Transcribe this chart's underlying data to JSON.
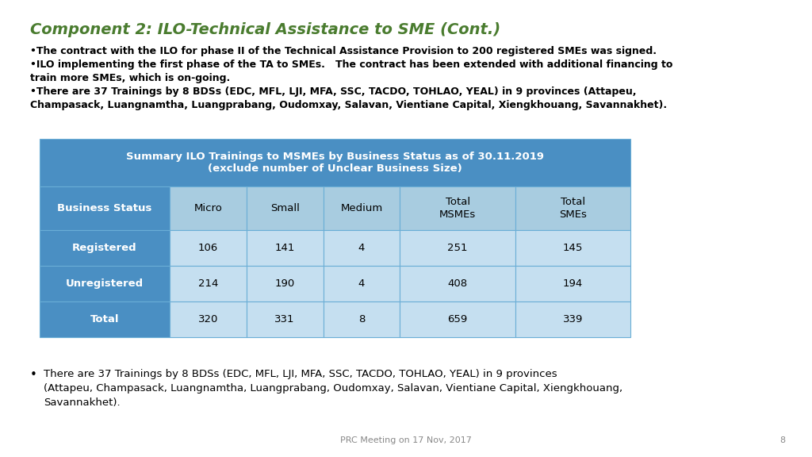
{
  "title": "Component 2: ILO-Technical Assistance to SME (Cont.)",
  "title_color": "#4a7c2f",
  "bullet1": "•The contract with the ILO for phase II of the Technical Assistance Provision to 200 registered SMEs was signed.",
  "bullet2a": "•ILO implementing the first phase of the TA to SMEs.   The contract has been extended with additional financing to",
  "bullet2b": "train more SMEs, which is on-going.",
  "bullet3a": "•There are 37 Trainings by 8 BDSs (EDC, MFL, LJI, MFA, SSC, TACDO, TOHLAO, YEAL) in 9 provinces (Attapeu,",
  "bullet3b": "Champasack, Luangnamtha, Luangprabang, Oudomxay, Salavan, Vientiane Capital, Xiengkhouang, Savannakhet).",
  "table_header_title_line1": "Summary ILO Trainings to MSMEs by Business Status as of 30.11.2019",
  "table_header_title_line2": "(exclude number of Unclear Business Size)",
  "table_header_bg": "#4a8fc3",
  "table_header_text_color": "#ffffff",
  "col_header_bg": "#a8cce0",
  "col_header_text_color": "#000000",
  "row_label_bg": "#4a8fc3",
  "row_label_text": "#ffffff",
  "data_bg": "#c5dff0",
  "data_text": "#000000",
  "border_color": "#6aaed6",
  "columns": [
    "Business\nStatus",
    "Micro",
    "Small",
    "Medium",
    "Total\nMSMEs",
    "Total\nSMEs"
  ],
  "col_header_label": [
    "Business Status",
    "Micro",
    "Small",
    "Medium",
    "Total\nMSMEs",
    "Total\nSMEs"
  ],
  "rows": [
    [
      "Registered",
      "106",
      "141",
      "4",
      "251",
      "145"
    ],
    [
      "Unregistered",
      "214",
      "190",
      "4",
      "408",
      "194"
    ],
    [
      "Total",
      "320",
      "331",
      "8",
      "659",
      "339"
    ]
  ],
  "bottom_bullet": "There are 37 Trainings by 8 BDSs (EDC, MFL, LJI, MFA, SSC, TACDO, TOHLAO, YEAL) in 9 provinces",
  "bottom_bullet_line2": "(Attapeu, Champasack, Luangnamtha, Luangprabang, Oudomxay, Salavan, Vientiane Capital, Xiengkhouang,",
  "bottom_bullet_line3": "Savannakhet).",
  "footer_text": "PRC Meeting on 17 Nov, 2017",
  "footer_page": "8",
  "bg_color": "#ffffff"
}
